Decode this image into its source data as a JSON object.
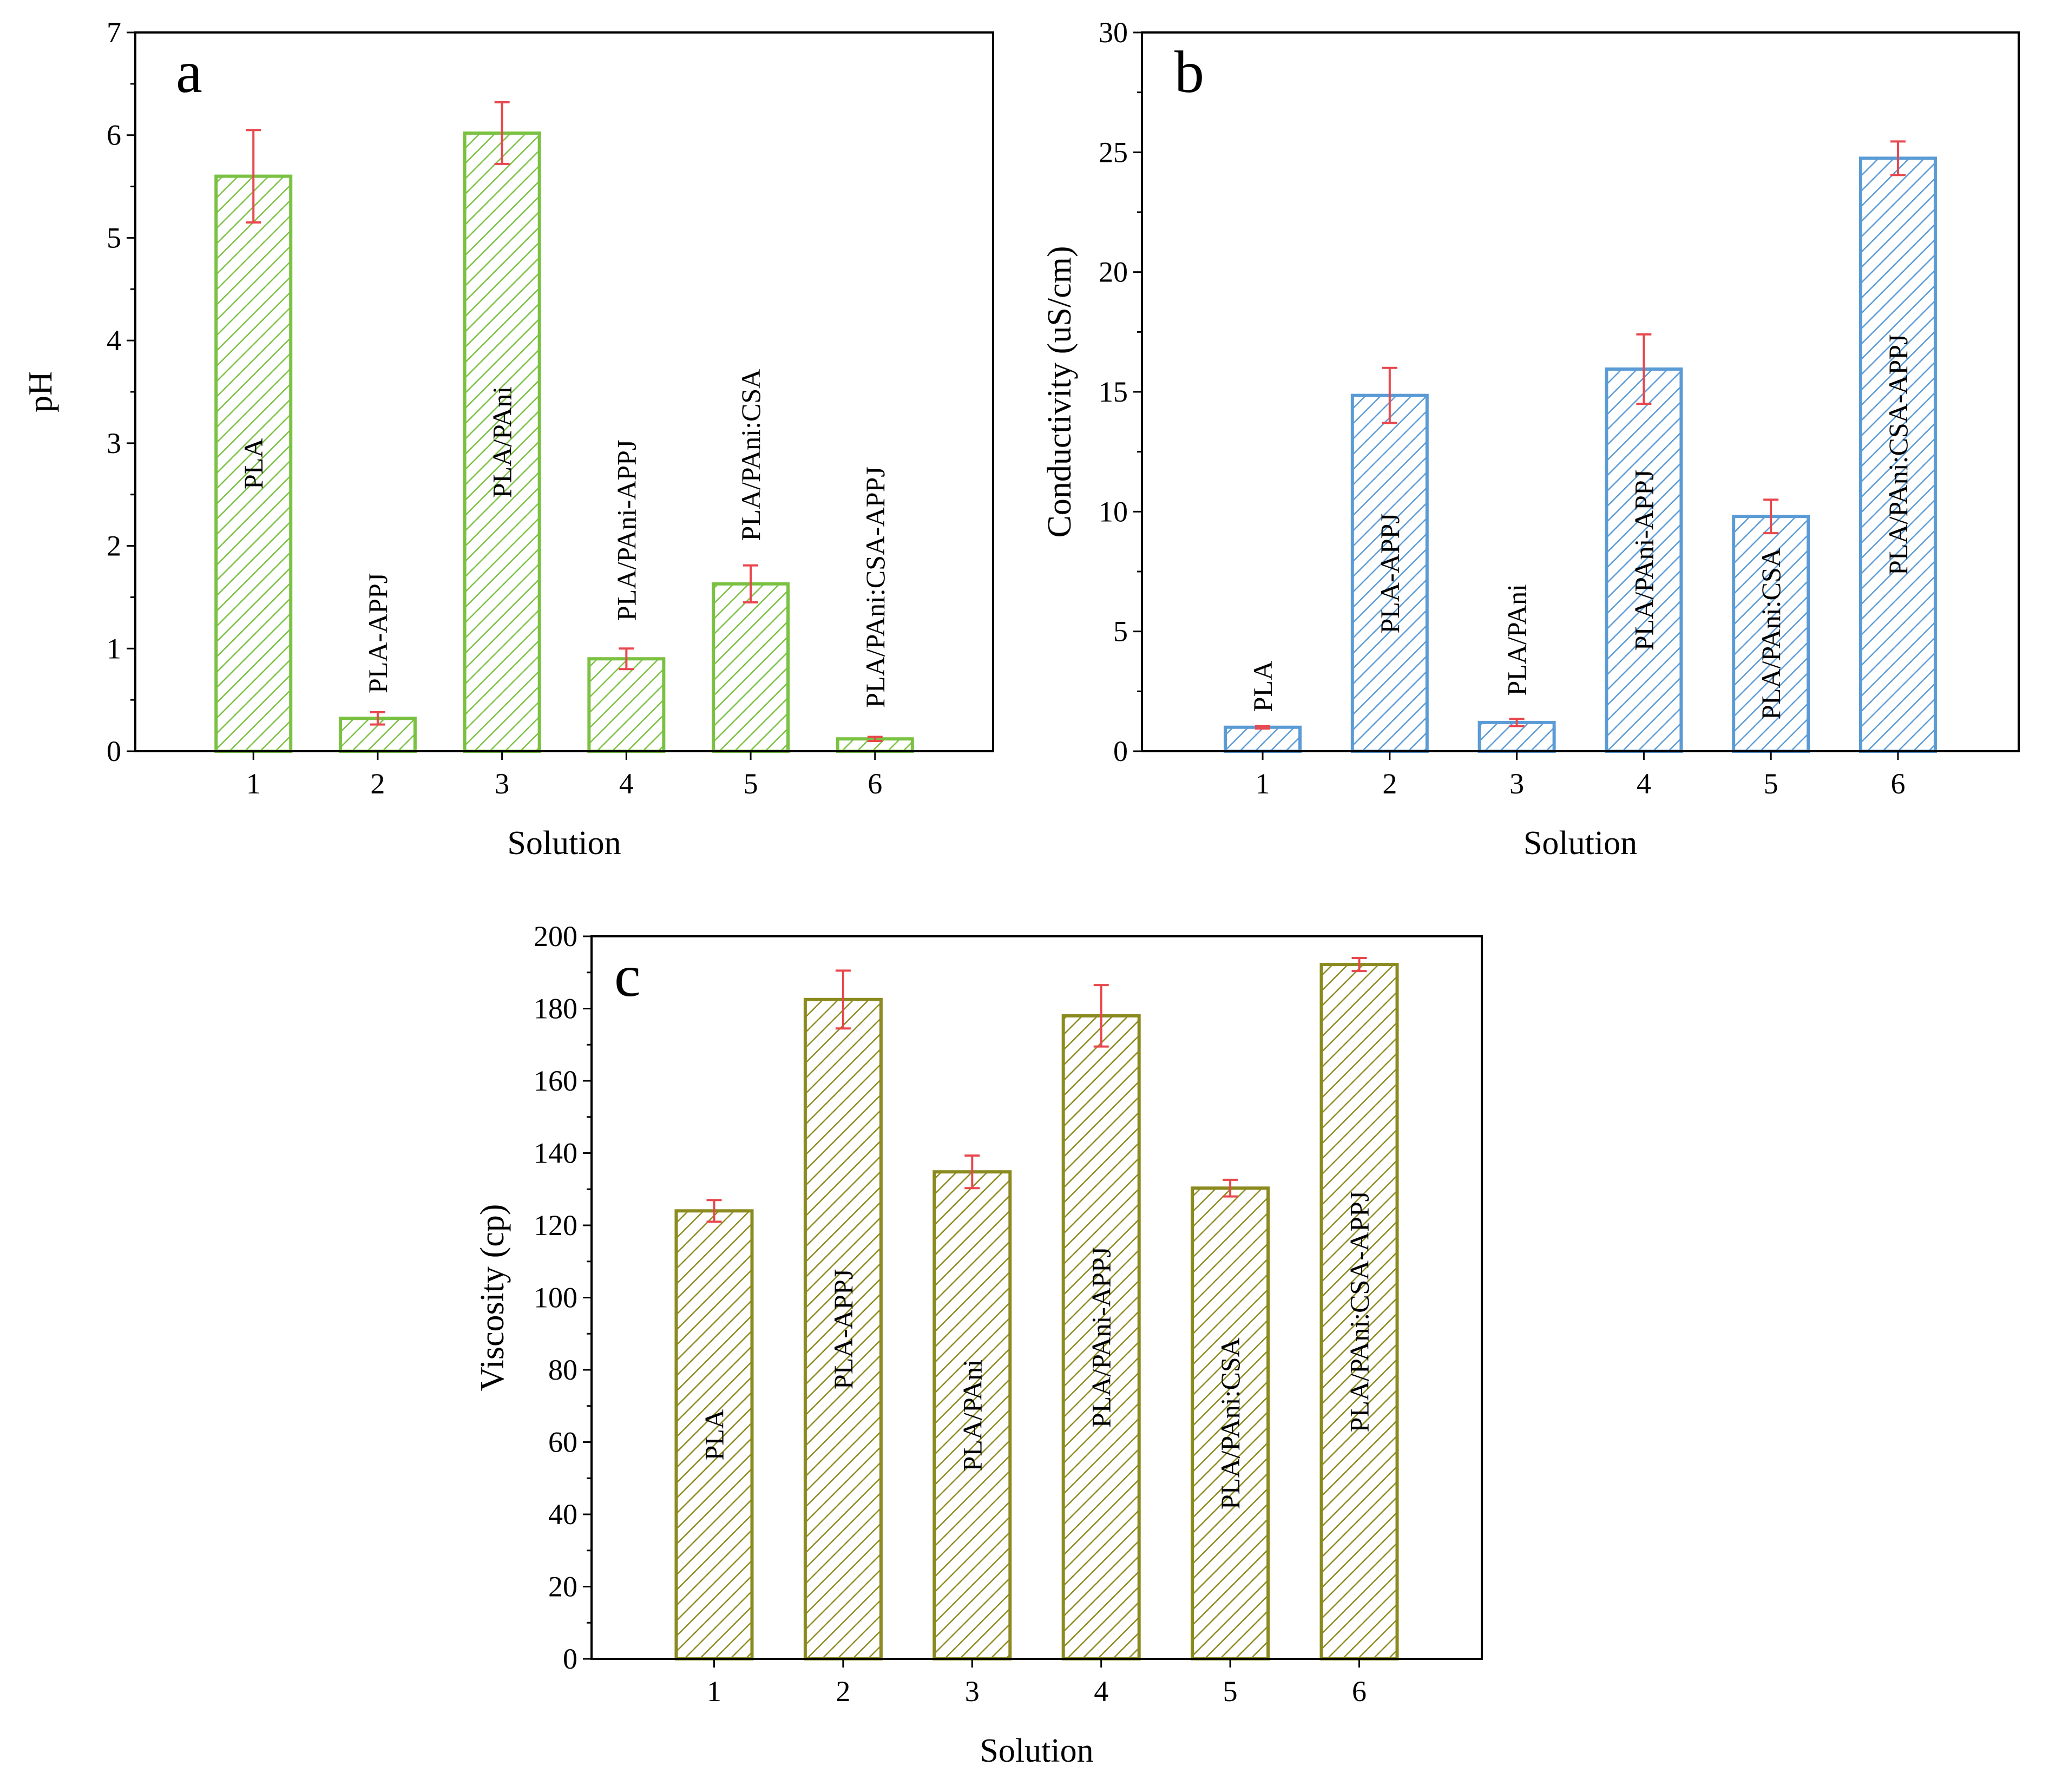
{
  "chart_data": [
    {
      "type": "bar",
      "panel_label": "a",
      "title": "",
      "xlabel": "Solution",
      "ylabel": "pH",
      "categories": [
        "1",
        "2",
        "3",
        "4",
        "5",
        "6"
      ],
      "values": [
        5.6,
        0.32,
        6.02,
        0.9,
        1.63,
        0.12
      ],
      "errors": [
        0.45,
        0.06,
        0.3,
        0.1,
        0.18,
        0.02
      ],
      "bar_labels": [
        "PLA",
        "PLA-APPJ",
        "PLA/PAni",
        "PLA/PAni-APPJ",
        "PLA/PAni:CSA",
        "PLA/PAni:CSA-APPJ"
      ],
      "ylim": [
        0,
        7
      ],
      "yticks": [
        0,
        1,
        2,
        3,
        4,
        5,
        6,
        7
      ],
      "bar_color": "#7ac142",
      "error_color": "#e8474d",
      "hatch": "diagonal",
      "grid": false
    },
    {
      "type": "bar",
      "panel_label": "b",
      "title": "",
      "xlabel": "Solution",
      "ylabel": "Conductivity (uS/cm)",
      "categories": [
        "1",
        "2",
        "3",
        "4",
        "5",
        "6"
      ],
      "values": [
        1.0,
        14.85,
        1.2,
        15.95,
        9.8,
        24.75
      ],
      "errors": [
        0.05,
        1.15,
        0.15,
        1.45,
        0.7,
        0.7
      ],
      "bar_labels": [
        "PLA",
        "PLA-APPJ",
        "PLA/PAni",
        "PLA/PAni-APPJ",
        "PLA/PAni:CSA",
        "PLA/PAni:CSA-APPJ"
      ],
      "ylim": [
        0,
        30
      ],
      "yticks": [
        0,
        5,
        10,
        15,
        20,
        25,
        30
      ],
      "bar_color": "#5b9bd5",
      "error_color": "#e8474d",
      "hatch": "diagonal",
      "grid": false
    },
    {
      "type": "bar",
      "panel_label": "c",
      "title": "",
      "xlabel": "Solution",
      "ylabel": "Viscosity (cp)",
      "categories": [
        "1",
        "2",
        "3",
        "4",
        "5",
        "6"
      ],
      "values": [
        124,
        182.5,
        134.8,
        178,
        130.3,
        192.2
      ],
      "errors": [
        3,
        8,
        4.5,
        8.5,
        2.3,
        1.8
      ],
      "bar_labels": [
        "PLA",
        "PLA-APPJ",
        "PLA/PAni",
        "PLA/PAni-APPJ",
        "PLA/PAni:CSA",
        "PLA/PAni:CSA-APPJ"
      ],
      "ylim": [
        0,
        200
      ],
      "yticks": [
        0,
        20,
        40,
        60,
        80,
        100,
        120,
        140,
        160,
        180,
        200
      ],
      "bar_color": "#8b8a1f",
      "error_color": "#e8474d",
      "hatch": "diagonal",
      "grid": false
    }
  ]
}
